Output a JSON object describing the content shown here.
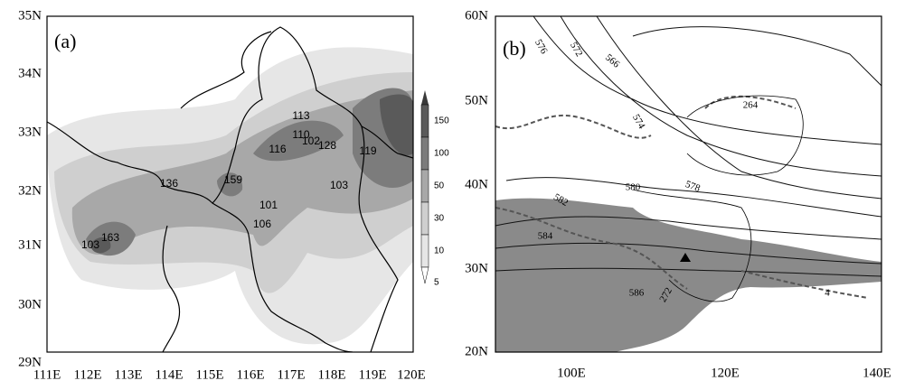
{
  "panel_a": {
    "label": "(a)",
    "yticks": [
      "35N",
      "34N",
      "33N",
      "32N",
      "31N",
      "30N",
      "29N"
    ],
    "xticks": [
      "111E",
      "112E",
      "113E",
      "114E",
      "115E",
      "116E",
      "117E",
      "118E",
      "119E",
      "120E"
    ],
    "station_labels": [
      "113",
      "110",
      "102",
      "128",
      "116",
      "119",
      "136",
      "159",
      "101",
      "103",
      "106",
      "163",
      "103"
    ],
    "colorbar_labels": [
      "150",
      "100",
      "50",
      "30",
      "10",
      "5"
    ]
  },
  "panel_b": {
    "label": "(b)",
    "yticks": [
      "60N",
      "50N",
      "40N",
      "30N",
      "20N"
    ],
    "xticks": [
      "100E",
      "120E",
      "140E"
    ],
    "contour_labels": [
      "576",
      "572",
      "566",
      "264",
      "574",
      "578",
      "580",
      "582",
      "584",
      "586",
      "272",
      "4"
    ]
  }
}
